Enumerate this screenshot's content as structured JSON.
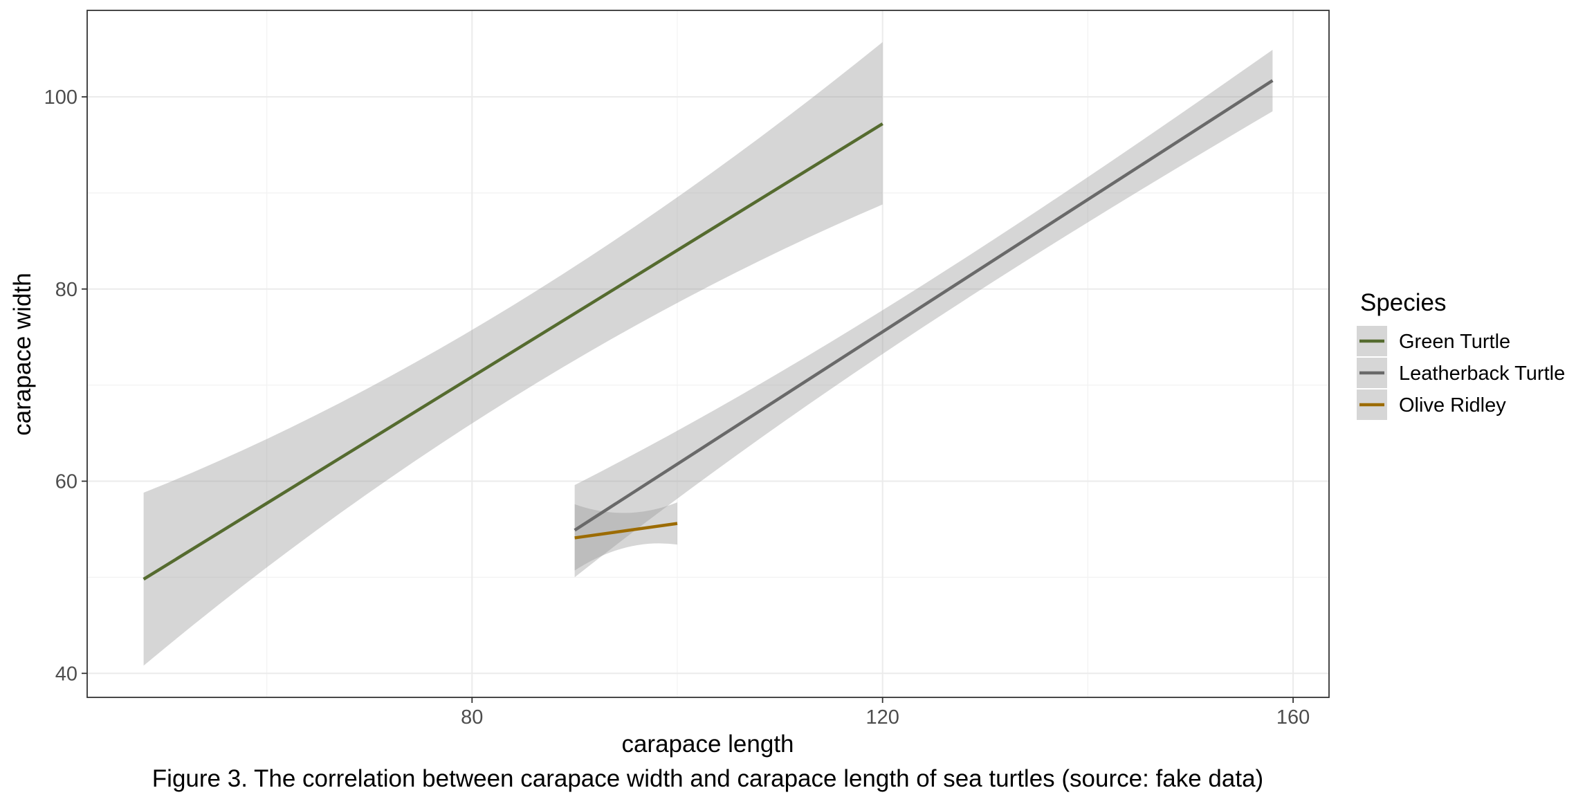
{
  "chart_data": {
    "type": "line",
    "xlabel": "carapace length",
    "ylabel": "carapace width",
    "xlim": [
      42.5,
      163.5
    ],
    "ylim": [
      37.5,
      109
    ],
    "x_ticks": [
      80,
      120,
      160
    ],
    "y_ticks": [
      40,
      60,
      80,
      100
    ],
    "x_minor": [
      60,
      100,
      140
    ],
    "y_minor": [
      50,
      70,
      90
    ],
    "grid": true,
    "legend": {
      "title": "Species",
      "position": "right"
    },
    "series": [
      {
        "name": "Green Turtle",
        "color": "#556b2f",
        "x": [
          48,
          120
        ],
        "y": [
          49.8,
          97.2
        ],
        "ci_lower": [
          40.8,
          88.8
        ],
        "ci_upper": [
          58.8,
          105.7
        ]
      },
      {
        "name": "Leatherback Turtle",
        "color": "#696969",
        "x": [
          90,
          158
        ],
        "y": [
          54.9,
          101.7
        ],
        "ci_lower": [
          50.0,
          98.5
        ],
        "ci_upper": [
          59.6,
          104.9
        ]
      },
      {
        "name": "Olive Ridley",
        "color": "#9c6b00",
        "x": [
          90,
          100
        ],
        "y": [
          54.1,
          55.6
        ],
        "ci_lower": [
          50.7,
          53.4
        ],
        "ci_upper": [
          57.6,
          57.8
        ],
        "ci_min": [
          56.7,
          53.1
        ]
      }
    ],
    "caption": "Figure 3. The correlation between carapace width and carapace length of sea turtles (source: fake data)"
  }
}
